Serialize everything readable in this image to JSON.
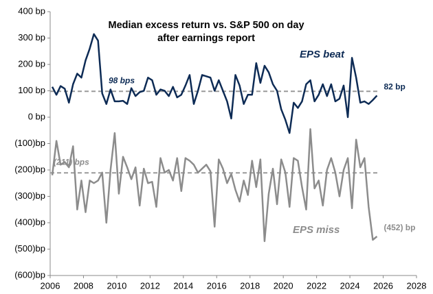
{
  "chart_data": {
    "type": "line",
    "title": "Median excess return vs. S&P 500 on day after earnings report",
    "x": [
      2006.125,
      2006.375,
      2006.625,
      2006.875,
      2007.125,
      2007.375,
      2007.625,
      2007.875,
      2008.125,
      2008.375,
      2008.625,
      2008.875,
      2009.125,
      2009.375,
      2009.625,
      2009.875,
      2010.125,
      2010.375,
      2010.625,
      2010.875,
      2011.125,
      2011.375,
      2011.625,
      2011.875,
      2012.125,
      2012.375,
      2012.625,
      2012.875,
      2013.125,
      2013.375,
      2013.625,
      2013.875,
      2014.125,
      2014.375,
      2014.625,
      2014.875,
      2015.125,
      2015.375,
      2015.625,
      2015.875,
      2016.125,
      2016.375,
      2016.625,
      2016.875,
      2017.125,
      2017.375,
      2017.625,
      2017.875,
      2018.125,
      2018.375,
      2018.625,
      2018.875,
      2019.125,
      2019.375,
      2019.625,
      2019.875,
      2020.125,
      2020.375,
      2020.625,
      2020.875,
      2021.125,
      2021.375,
      2021.625,
      2021.875,
      2022.125,
      2022.375,
      2022.625,
      2022.875,
      2023.125,
      2023.375,
      2023.625,
      2023.875,
      2024.125,
      2024.375,
      2024.625,
      2024.875,
      2025.125,
      2025.375,
      2025.625
    ],
    "series": [
      {
        "name": "EPS beat",
        "color": "#0d2b55",
        "values": [
          115,
          85,
          118,
          108,
          55,
          125,
          165,
          150,
          215,
          260,
          315,
          290,
          90,
          50,
          105,
          60,
          60,
          62,
          50,
          110,
          80,
          95,
          100,
          150,
          140,
          85,
          105,
          100,
          80,
          115,
          75,
          85,
          120,
          160,
          50,
          100,
          160,
          155,
          150,
          100,
          140,
          100,
          60,
          -5,
          160,
          120,
          50,
          85,
          85,
          205,
          130,
          195,
          170,
          125,
          100,
          30,
          -10,
          -60,
          55,
          35,
          60,
          125,
          140,
          60,
          85,
          125,
          80,
          125,
          60,
          70,
          120,
          0,
          225,
          150,
          55,
          60,
          50,
          65,
          82
        ]
      },
      {
        "name": "EPS miss",
        "color": "#8c8c8c",
        "values": [
          -220,
          -90,
          -180,
          -170,
          -190,
          -110,
          -350,
          -240,
          -360,
          -240,
          -250,
          -240,
          -210,
          -400,
          -200,
          -60,
          -290,
          -150,
          -190,
          -235,
          -190,
          -335,
          -195,
          -250,
          -245,
          -340,
          -155,
          -210,
          -200,
          -240,
          -155,
          -280,
          -155,
          -165,
          -180,
          -210,
          -195,
          -180,
          -205,
          -415,
          -160,
          -195,
          -250,
          -215,
          -275,
          -320,
          -240,
          -295,
          -165,
          -265,
          -160,
          -470,
          -290,
          -195,
          -330,
          -160,
          -210,
          -340,
          -155,
          -165,
          -265,
          -350,
          -45,
          -270,
          -240,
          -335,
          -200,
          -155,
          -210,
          -300,
          -200,
          -155,
          -345,
          -85,
          -190,
          -155,
          -340,
          -465,
          -452
        ]
      }
    ],
    "reference_lines": [
      {
        "value": 98,
        "label": "98 bps"
      },
      {
        "value": -211,
        "label": "(211) bps"
      }
    ],
    "annotations": [
      {
        "x": 2025.625,
        "y": 82,
        "label": "82 bp"
      },
      {
        "x": 2025.625,
        "y": -452,
        "label": "(452) bp"
      }
    ],
    "xlim": [
      2006,
      2028
    ],
    "xticks": [
      2006,
      2008,
      2010,
      2012,
      2014,
      2016,
      2018,
      2020,
      2022,
      2024,
      2026,
      2028
    ],
    "ylim": [
      -600,
      400
    ],
    "yticks": [
      {
        "value": 400,
        "label": "400 bp"
      },
      {
        "value": 300,
        "label": "300 bp"
      },
      {
        "value": 200,
        "label": "200 bp"
      },
      {
        "value": 100,
        "label": "100 bp"
      },
      {
        "value": 0,
        "label": "0 bp"
      },
      {
        "value": -100,
        "label": "(100)bp"
      },
      {
        "value": -200,
        "label": "(200)bp"
      },
      {
        "value": -300,
        "label": "(300)bp"
      },
      {
        "value": -400,
        "label": "(400)bp"
      },
      {
        "value": -500,
        "label": "(500)bp"
      },
      {
        "value": -600,
        "label": "(600)bp"
      }
    ]
  }
}
